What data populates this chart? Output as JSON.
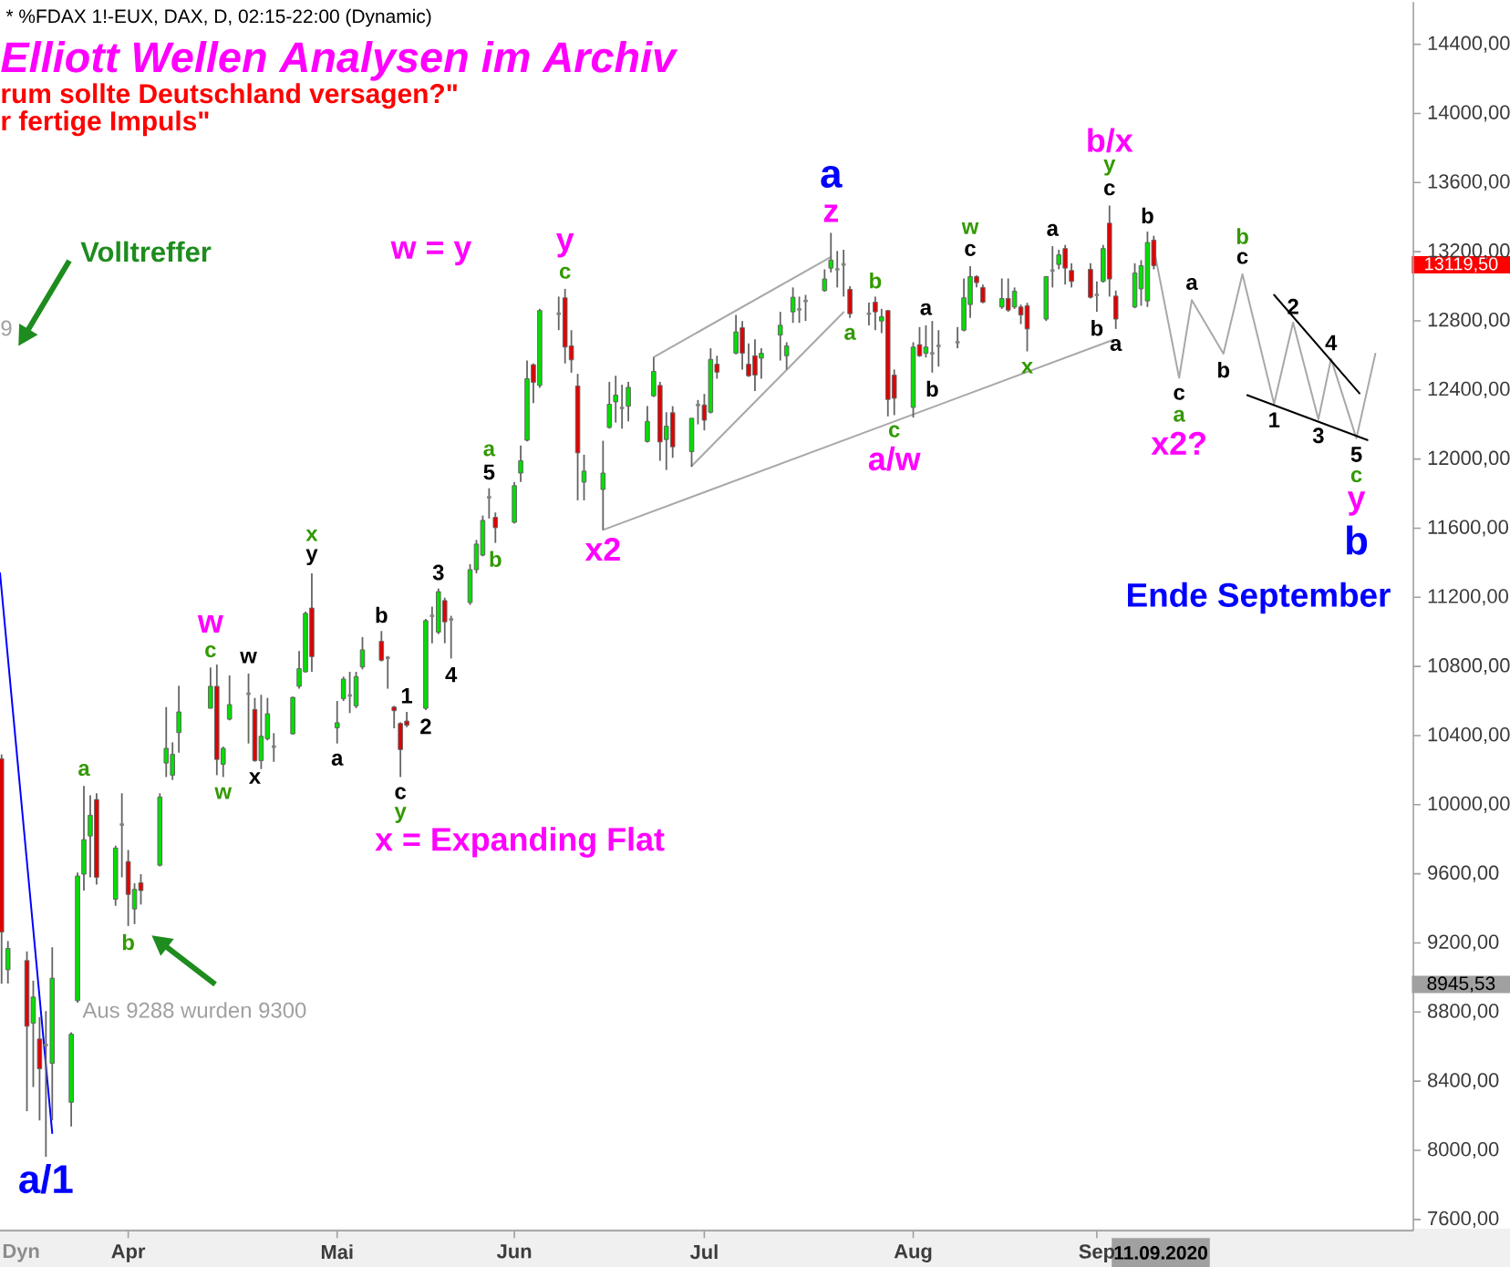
{
  "chart_data": {
    "type": "candlestick",
    "title": "Elliott Wellen Analysen im Archiv",
    "subtitle": "rum sollte Deutschland versagen?\"",
    "x": [
      "2020-03-12",
      "2020-03-13",
      "2020-03-16",
      "2020-03-17",
      "2020-03-18",
      "2020-03-19",
      "2020-03-20",
      "2020-03-23",
      "2020-03-24",
      "2020-03-25",
      "2020-03-26",
      "2020-03-27",
      "2020-03-30",
      "2020-03-31",
      "2020-04-01",
      "2020-04-02",
      "2020-04-03",
      "2020-04-06",
      "2020-04-07",
      "2020-04-08",
      "2020-04-09",
      "2020-04-14",
      "2020-04-15",
      "2020-04-16",
      "2020-04-17",
      "2020-04-20",
      "2020-04-21",
      "2020-04-22",
      "2020-04-23",
      "2020-04-24",
      "2020-04-27",
      "2020-04-28",
      "2020-04-29",
      "2020-04-30",
      "2020-05-04",
      "2020-05-05",
      "2020-05-06",
      "2020-05-07",
      "2020-05-08",
      "2020-05-11",
      "2020-05-12",
      "2020-05-13",
      "2020-05-14",
      "2020-05-15",
      "2020-05-18",
      "2020-05-19",
      "2020-05-20",
      "2020-05-21",
      "2020-05-22",
      "2020-05-25",
      "2020-05-26",
      "2020-05-27",
      "2020-05-28",
      "2020-05-29",
      "2020-06-01",
      "2020-06-02",
      "2020-06-03",
      "2020-06-04",
      "2020-06-05",
      "2020-06-08",
      "2020-06-09",
      "2020-06-10",
      "2020-06-11",
      "2020-06-12",
      "2020-06-15",
      "2020-06-16",
      "2020-06-17",
      "2020-06-18",
      "2020-06-19",
      "2020-06-22",
      "2020-06-23",
      "2020-06-24",
      "2020-06-25",
      "2020-06-26",
      "2020-06-29",
      "2020-06-30",
      "2020-07-01",
      "2020-07-02",
      "2020-07-03",
      "2020-07-06",
      "2020-07-07",
      "2020-07-08",
      "2020-07-09",
      "2020-07-10",
      "2020-07-13",
      "2020-07-14",
      "2020-07-15",
      "2020-07-16",
      "2020-07-17",
      "2020-07-20",
      "2020-07-21",
      "2020-07-22",
      "2020-07-23",
      "2020-07-24",
      "2020-07-27",
      "2020-07-28",
      "2020-07-29",
      "2020-07-30",
      "2020-07-31",
      "2020-08-03",
      "2020-08-04",
      "2020-08-05",
      "2020-08-06",
      "2020-08-07",
      "2020-08-10",
      "2020-08-11",
      "2020-08-12",
      "2020-08-13",
      "2020-08-14",
      "2020-08-17",
      "2020-08-18",
      "2020-08-19",
      "2020-08-20",
      "2020-08-21",
      "2020-08-24",
      "2020-08-25",
      "2020-08-26",
      "2020-08-27",
      "2020-08-28",
      "2020-08-31",
      "2020-09-01",
      "2020-09-02",
      "2020-09-03",
      "2020-09-04",
      "2020-09-07",
      "2020-09-08",
      "2020-09-09",
      "2020-09-10"
    ],
    "ohlc": [
      [
        10266,
        10291,
        8964,
        9263
      ],
      [
        9045,
        9211,
        8965,
        9168
      ],
      [
        9098,
        9151,
        8226,
        8718
      ],
      [
        8736,
        8982,
        8366,
        8887
      ],
      [
        8644,
        8771,
        8173,
        8472
      ],
      [
        8609,
        8806,
        7962,
        8609
      ],
      [
        8503,
        9175,
        8173,
        8996
      ],
      [
        8278,
        8683,
        8138,
        8672
      ],
      [
        8866,
        9608,
        8855,
        9587
      ],
      [
        9598,
        10108,
        9503,
        9798
      ],
      [
        9819,
        10055,
        9580,
        9939
      ],
      [
        10030,
        10066,
        9538,
        9580
      ],
      [
        9453,
        9763,
        9415,
        9749
      ],
      [
        9885,
        10066,
        9580,
        9885
      ],
      [
        9671,
        9738,
        9298,
        9481
      ],
      [
        9397,
        9545,
        9309,
        9510
      ],
      [
        9548,
        9598,
        9422,
        9503
      ],
      [
        9650,
        10066,
        9643,
        10044
      ],
      [
        10241,
        10565,
        10160,
        10326
      ],
      [
        10171,
        10361,
        10143,
        10291
      ],
      [
        10417,
        10688,
        10301,
        10537
      ],
      [
        10558,
        10794,
        10558,
        10685
      ],
      [
        10685,
        10811,
        10171,
        10262
      ],
      [
        10234,
        10336,
        10160,
        10326
      ],
      [
        10495,
        10748,
        10488,
        10579
      ],
      [
        10642,
        10759,
        10354,
        10642
      ],
      [
        10551,
        10618,
        10248,
        10255
      ],
      [
        10255,
        10636,
        10206,
        10396
      ],
      [
        10382,
        10618,
        10372,
        10526
      ],
      [
        10336,
        10414,
        10248,
        10336
      ],
      [
        10410,
        10625,
        10406,
        10621
      ],
      [
        10685,
        10889,
        10671,
        10787
      ],
      [
        10769,
        11117,
        10765,
        11107
      ],
      [
        11138,
        11339,
        10769,
        10857
      ],
      [
        10445,
        10600,
        10354,
        10474
      ],
      [
        10614,
        10741,
        10600,
        10727
      ],
      [
        10632,
        10769,
        10530,
        10632
      ],
      [
        10572,
        10769,
        10558,
        10741
      ],
      [
        10797,
        10970,
        10783,
        10896
      ],
      [
        10945,
        11005,
        10829,
        10836
      ],
      [
        10850,
        10860,
        10671,
        10850
      ],
      [
        10565,
        10572,
        10442,
        10544
      ],
      [
        10470,
        10477,
        10160,
        10319
      ],
      [
        10484,
        10537,
        10449,
        10460
      ],
      [
        10558,
        11075,
        10547,
        11065
      ],
      [
        11093,
        11146,
        10934,
        11093
      ],
      [
        10998,
        11251,
        10987,
        11233
      ],
      [
        11181,
        11198,
        10934,
        11058
      ],
      [
        11072,
        11093,
        10846,
        11072
      ],
      [
        11170,
        11392,
        11156,
        11360
      ],
      [
        11360,
        11532,
        11339,
        11508
      ],
      [
        11444,
        11673,
        11437,
        11645
      ],
      [
        11779,
        11831,
        11656,
        11779
      ],
      [
        11663,
        11691,
        11515,
        11603
      ],
      [
        11634,
        11867,
        11627,
        11846
      ],
      [
        11919,
        12078,
        11867,
        11990
      ],
      [
        12109,
        12570,
        12102,
        12465
      ],
      [
        12546,
        12553,
        12324,
        12444
      ],
      [
        12426,
        12869,
        12412,
        12859
      ],
      [
        12841,
        12940,
        12746,
        12841
      ],
      [
        12933,
        12985,
        12553,
        12648
      ],
      [
        12655,
        12746,
        12500,
        12574
      ],
      [
        12423,
        12493,
        11761,
        12036
      ],
      [
        11867,
        12025,
        11761,
        11930
      ],
      [
        11824,
        12106,
        11592,
        11919
      ],
      [
        12183,
        12447,
        12176,
        12317
      ],
      [
        12331,
        12482,
        12211,
        12370
      ],
      [
        12296,
        12430,
        12176,
        12296
      ],
      [
        12306,
        12447,
        12218,
        12415
      ],
      [
        12102,
        12306,
        12095,
        12218
      ],
      [
        12366,
        12588,
        12359,
        12507
      ],
      [
        12426,
        12447,
        11990,
        12099
      ],
      [
        12113,
        12271,
        11937,
        12190
      ],
      [
        12268,
        12306,
        12007,
        12071
      ],
      [
        12043,
        12236,
        11955,
        12236
      ],
      [
        12313,
        12342,
        12201,
        12313
      ],
      [
        12313,
        12377,
        12166,
        12225
      ],
      [
        12271,
        12641,
        12264,
        12577
      ],
      [
        12549,
        12598,
        12465,
        12503
      ],
      [
        12613,
        12834,
        12606,
        12736
      ],
      [
        12760,
        12799,
        12518,
        12613
      ],
      [
        12549,
        12669,
        12475,
        12482
      ],
      [
        12598,
        12693,
        12394,
        12486
      ],
      [
        12584,
        12641,
        12465,
        12612
      ],
      [
        12718,
        12852,
        12570,
        12774
      ],
      [
        12598,
        12676,
        12518,
        12655
      ],
      [
        12852,
        12993,
        12788,
        12936
      ],
      [
        12866,
        12940,
        12788,
        12866
      ],
      [
        12915,
        12950,
        12799,
        12915
      ],
      [
        12975,
        13098,
        12968,
        13042
      ],
      [
        13105,
        13309,
        13080,
        13151
      ],
      [
        13098,
        13204,
        12993,
        13098
      ],
      [
        13126,
        13211,
        12940,
        13126
      ],
      [
        12982,
        13000,
        12817,
        12841
      ],
      [
        12841,
        12905,
        12774,
        12841
      ],
      [
        12908,
        12940,
        12746,
        12852
      ],
      [
        12799,
        12869,
        12729,
        12824
      ],
      [
        12859,
        12862,
        12247,
        12345
      ],
      [
        12486,
        12518,
        12254,
        12352
      ],
      [
        12299,
        12676,
        12240,
        12648
      ],
      [
        12662,
        12764,
        12591,
        12598
      ],
      [
        12612,
        12774,
        12588,
        12648
      ],
      [
        12612,
        12799,
        12500,
        12612
      ],
      [
        12655,
        12746,
        12535,
        12655
      ],
      [
        12676,
        12764,
        12641,
        12676
      ],
      [
        12746,
        13045,
        12739,
        12933
      ],
      [
        12894,
        13116,
        12817,
        13056
      ],
      [
        13056,
        13063,
        12993,
        13021
      ],
      [
        12993,
        13010,
        12901,
        12908
      ],
      [
        12880,
        13045,
        12869,
        12929
      ],
      [
        12929,
        13045,
        12852,
        12862
      ],
      [
        12880,
        12993,
        12869,
        12971
      ],
      [
        12880,
        12894,
        12781,
        12834
      ],
      [
        12887,
        12904,
        12623,
        12753
      ],
      [
        12810,
        13056,
        12799,
        13056
      ],
      [
        13091,
        13232,
        12993,
        13091
      ],
      [
        13126,
        13211,
        13098,
        13182
      ],
      [
        13218,
        13239,
        13010,
        13105
      ],
      [
        13091,
        13133,
        12993,
        13028
      ],
      [
        13098,
        13133,
        12929,
        12936
      ],
      [
        12950,
        13028,
        12852,
        12950
      ],
      [
        13028,
        13239,
        13021,
        13218
      ],
      [
        13365,
        13467,
        12940,
        13042
      ],
      [
        12943,
        12975,
        12753,
        12810
      ],
      [
        12880,
        13133,
        12873,
        13077
      ],
      [
        12985,
        13151,
        12887,
        13119
      ],
      [
        12915,
        13316,
        12880,
        13253
      ],
      [
        13267,
        13292,
        13098,
        13119.5
      ]
    ],
    "colors": [
      "#e00000",
      "#00e000",
      "#e00000",
      "#00e000",
      "#e00000",
      "#808080",
      "#00e000",
      "#00e000",
      "#00e000",
      "#00e000",
      "#00e000",
      "#e00000",
      "#00e000",
      "#808080",
      "#e00000",
      "#00e000",
      "#e00000",
      "#00e000",
      "#00e000",
      "#00e000",
      "#00e000",
      "#00e000",
      "#e00000",
      "#00e000",
      "#00e000",
      "#808080",
      "#e00000",
      "#00e000",
      "#00e000",
      "#808080",
      "#00e000",
      "#00e000",
      "#00e000",
      "#e00000",
      "#00e000",
      "#00e000",
      "#808080",
      "#00e000",
      "#00e000",
      "#e00000",
      "#808080",
      "#e00000",
      "#e00000",
      "#e00000",
      "#00e000",
      "#808080",
      "#00e000",
      "#e00000",
      "#808080",
      "#00e000",
      "#00e000",
      "#00e000",
      "#808080",
      "#e00000",
      "#00e000",
      "#00e000",
      "#00e000",
      "#e00000",
      "#00e000",
      "#808080",
      "#e00000",
      "#e00000",
      "#e00000",
      "#00e000",
      "#00e000",
      "#00e000",
      "#00e000",
      "#808080",
      "#00e000",
      "#00e000",
      "#00e000",
      "#e00000",
      "#00e000",
      "#e00000",
      "#00e000",
      "#808080",
      "#e00000",
      "#00e000",
      "#e00000",
      "#00e000",
      "#e00000",
      "#e00000",
      "#e00000",
      "#00e000",
      "#00e000",
      "#00e000",
      "#00e000",
      "#808080",
      "#808080",
      "#00e000",
      "#00e000",
      "#808080",
      "#808080",
      "#e00000",
      "#808080",
      "#e00000",
      "#00e000",
      "#e00000",
      "#e00000",
      "#00e000",
      "#e00000",
      "#00e000",
      "#808080",
      "#808080",
      "#808080",
      "#00e000",
      "#00e000",
      "#e00000",
      "#e00000",
      "#00e000",
      "#e00000",
      "#00e000",
      "#e00000",
      "#e00000",
      "#00e000",
      "#808080",
      "#00e000",
      "#e00000",
      "#e00000",
      "#e00000",
      "#808080",
      "#00e000",
      "#e00000",
      "#e00000",
      "#00e000",
      "#00e000",
      "#00e000",
      "#e00000"
    ],
    "series": [
      {
        "type": "line",
        "color": "#0000ff",
        "x": [
          "2020-03-11T18:00",
          "2020-03-20"
        ],
        "values": [
          11340,
          8100
        ]
      },
      {
        "type": "line",
        "color": "#a8a8a8",
        "x": [
          "2020-06-15",
          "2020-09-03T15:00"
        ],
        "values": [
          11590,
          12690
        ]
      },
      {
        "type": "line",
        "color": "#a8a8a8",
        "x": [
          "2020-06-23",
          "2020-07-21"
        ],
        "values": [
          12590,
          13170
        ]
      },
      {
        "type": "line",
        "color": "#a8a8a8",
        "x": [
          "2020-06-29",
          "2020-07-23"
        ],
        "values": [
          11960,
          12850
        ]
      },
      {
        "type": "line",
        "color": "#a8a8a8",
        "x": [
          "2020-09-10",
          "2020-09-14",
          "2020-09-16",
          "2020-09-21",
          "2020-09-24",
          "2020-09-29",
          "2020-10-02",
          "2020-10-06",
          "2020-10-08",
          "2020-10-12",
          "2020-10-15"
        ],
        "values": [
          13220,
          12470,
          12920,
          12610,
          13070,
          12320,
          12790,
          12230,
          12580,
          12120,
          12610
        ]
      },
      {
        "type": "line",
        "color": "#000000",
        "x": [
          "2020-09-29",
          "2020-10-12T12:00"
        ],
        "values": [
          12950,
          12380
        ]
      },
      {
        "type": "line",
        "color": "#000000",
        "x": [
          "2020-09-24T18:00",
          "2020-10-13T18:00"
        ],
        "values": [
          12370,
          12110
        ]
      }
    ],
    "xlim": [
      "2020-03-11T18:00",
      "2020-10-21"
    ],
    "ylim": [
      7535,
      14645
    ],
    "xticks": [
      {
        "value": "2020-04-01",
        "label": "Apr"
      },
      {
        "value": "2020-05-04",
        "label": "Mai"
      },
      {
        "value": "2020-06-01",
        "label": "Jun"
      },
      {
        "value": "2020-07-01",
        "label": "Jul"
      },
      {
        "value": "2020-08-03",
        "label": "Aug"
      },
      {
        "value": "2020-09-01",
        "label": "Sep"
      }
    ],
    "yticks": [
      {
        "value": 7600,
        "label": "7600,00"
      },
      {
        "value": 8000,
        "label": "8000,00"
      },
      {
        "value": 8400,
        "label": "8400,00"
      },
      {
        "value": 8800,
        "label": "8800,00"
      },
      {
        "value": 9200,
        "label": "9200,00"
      },
      {
        "value": 9600,
        "label": "9600,00"
      },
      {
        "value": 10000,
        "label": "10000,00"
      },
      {
        "value": 10400,
        "label": "10400,00"
      },
      {
        "value": 10800,
        "label": "10800,00"
      },
      {
        "value": 11200,
        "label": "11200,00"
      },
      {
        "value": 11600,
        "label": "11600,00"
      },
      {
        "value": 12000,
        "label": "12000,00"
      },
      {
        "value": 12400,
        "label": "12400,00"
      },
      {
        "value": 12800,
        "label": "12800,00"
      },
      {
        "value": 13200,
        "label": "13200,00"
      },
      {
        "value": 13600,
        "label": "13600,00"
      },
      {
        "value": 14000,
        "label": "14000,00"
      },
      {
        "value": 14400,
        "label": "14400,00"
      }
    ],
    "annotations": [
      "* %FDAX 1!-EUX, DAX, D, 02:15-22:00 (Dynamic)",
      "r fertige Impuls\"",
      "Dyn",
      "Volltreffer",
      "Aus 9288 wurden 9300",
      "9",
      "w = y",
      "x = Expanding Flat",
      "Ende September",
      "8945,53",
      "11.09.2020",
      "13119,50",
      {
        "text": "a/1",
        "x": "2020-03-19",
        "y": 7962
      },
      {
        "text": "a",
        "x": "2020-03-25",
        "y": 10108
      },
      {
        "text": "b",
        "x": "2020-04-01",
        "y": 9298
      },
      {
        "text": "c",
        "x": "2020-04-14",
        "y": 10794
      },
      {
        "text": "w",
        "x": "2020-04-14",
        "y": 10794
      },
      {
        "text": "w",
        "x": "2020-04-20",
        "y": 10759
      },
      {
        "text": "w",
        "x": "2020-04-16",
        "y": 10160
      },
      {
        "text": "x",
        "x": "2020-04-21",
        "y": 10248
      },
      {
        "text": "y",
        "x": "2020-04-30",
        "y": 11339
      },
      {
        "text": "x",
        "x": "2020-04-30",
        "y": 11339
      },
      {
        "text": "a",
        "x": "2020-05-04",
        "y": 10354
      },
      {
        "text": "b",
        "x": "2020-05-11",
        "y": 11005
      },
      {
        "text": "1",
        "x": "2020-05-15",
        "y": 10537
      },
      {
        "text": "c",
        "x": "2020-05-14",
        "y": 10160
      },
      {
        "text": "y",
        "x": "2020-05-14",
        "y": 10160
      },
      {
        "text": "2",
        "x": "2020-05-18",
        "y": 10547
      },
      {
        "text": "3",
        "x": "2020-05-20",
        "y": 11251
      },
      {
        "text": "4",
        "x": "2020-05-22",
        "y": 10846
      },
      {
        "text": "5",
        "x": "2020-05-28",
        "y": 11831
      },
      {
        "text": "a",
        "x": "2020-05-28",
        "y": 11831
      },
      {
        "text": "b",
        "x": "2020-05-29",
        "y": 11515
      },
      {
        "text": "c",
        "x": "2020-06-09",
        "y": 12985
      },
      {
        "text": "y",
        "x": "2020-06-09",
        "y": 12985
      },
      {
        "text": "x2",
        "x": "2020-06-15",
        "y": 11592
      },
      {
        "text": "z",
        "x": "2020-07-21",
        "y": 13309
      },
      {
        "text": "a",
        "x": "2020-07-21",
        "y": 13309
      },
      {
        "text": "a",
        "x": "2020-07-24",
        "y": 12817
      },
      {
        "text": "b",
        "x": "2020-07-28",
        "y": 12940
      },
      {
        "text": "c",
        "x": "2020-07-31",
        "y": 12254
      },
      {
        "text": "a/w",
        "x": "2020-07-31",
        "y": 12254
      },
      {
        "text": "a",
        "x": "2020-08-05",
        "y": 12774
      },
      {
        "text": "b",
        "x": "2020-08-06",
        "y": 12500
      },
      {
        "text": "c",
        "x": "2020-08-12",
        "y": 13116
      },
      {
        "text": "w",
        "x": "2020-08-12",
        "y": 13116
      },
      {
        "text": "x",
        "x": "2020-08-21",
        "y": 12623
      },
      {
        "text": "a",
        "x": "2020-08-25",
        "y": 13232
      },
      {
        "text": "b",
        "x": "2020-09-01",
        "y": 12852
      },
      {
        "text": "a",
        "x": "2020-09-04",
        "y": 12753
      },
      {
        "text": "c",
        "x": "2020-09-03",
        "y": 13467
      },
      {
        "text": "y",
        "x": "2020-09-03",
        "y": 13467
      },
      {
        "text": "b/x",
        "x": "2020-09-03",
        "y": 13467
      },
      {
        "text": "b",
        "x": "2020-09-09",
        "y": 13316
      },
      {
        "text": "c",
        "x": "2020-09-14",
        "y": 12470
      },
      {
        "text": "a",
        "x": "2020-09-14",
        "y": 12470
      },
      {
        "text": "x2?",
        "x": "2020-09-14",
        "y": 12470
      },
      {
        "text": "a",
        "x": "2020-09-16",
        "y": 12920
      },
      {
        "text": "b",
        "x": "2020-09-21",
        "y": 12610
      },
      {
        "text": "c",
        "x": "2020-09-24",
        "y": 13070
      },
      {
        "text": "b",
        "x": "2020-09-24",
        "y": 13070
      },
      {
        "text": "1",
        "x": "2020-09-29",
        "y": 12320
      },
      {
        "text": "2",
        "x": "2020-10-02",
        "y": 12790
      },
      {
        "text": "3",
        "x": "2020-10-06",
        "y": 12230
      },
      {
        "text": "4",
        "x": "2020-10-08",
        "y": 12580
      },
      {
        "text": "5",
        "x": "2020-10-12",
        "y": 12120
      },
      {
        "text": "c",
        "x": "2020-10-12",
        "y": 12120
      },
      {
        "text": "y",
        "x": "2020-10-12",
        "y": 12120
      },
      {
        "text": "b",
        "x": "2020-10-12",
        "y": 12120
      }
    ]
  }
}
